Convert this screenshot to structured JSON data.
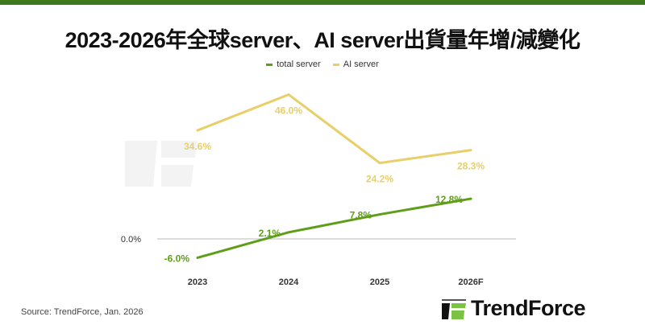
{
  "title": "2023-2026年全球server、AI server出貨量年增/減變化",
  "source": "Source: TrendForce, Jan. 2026",
  "logo_text": "TrendForce",
  "watermark_text": "TrendForce",
  "colors": {
    "total_server": "#5f9e1a",
    "ai_server": "#e8cf6a",
    "brand": "#3d7a1e"
  },
  "chart_data": {
    "type": "line",
    "categories": [
      "2023",
      "2024",
      "2025",
      "2026F"
    ],
    "series": [
      {
        "name": "total server",
        "values": [
          -6.0,
          2.1,
          7.8,
          12.8
        ],
        "labels": [
          "-6.0%",
          "2.1%",
          "7.8%",
          "12.8%"
        ]
      },
      {
        "name": "AI server",
        "values": [
          34.6,
          46.0,
          24.2,
          28.3
        ],
        "labels": [
          "34.6%",
          "46.0%",
          "24.2%",
          "28.3%"
        ]
      }
    ],
    "y_tick_label": "0.0%",
    "legend": "top",
    "grid": false
  }
}
